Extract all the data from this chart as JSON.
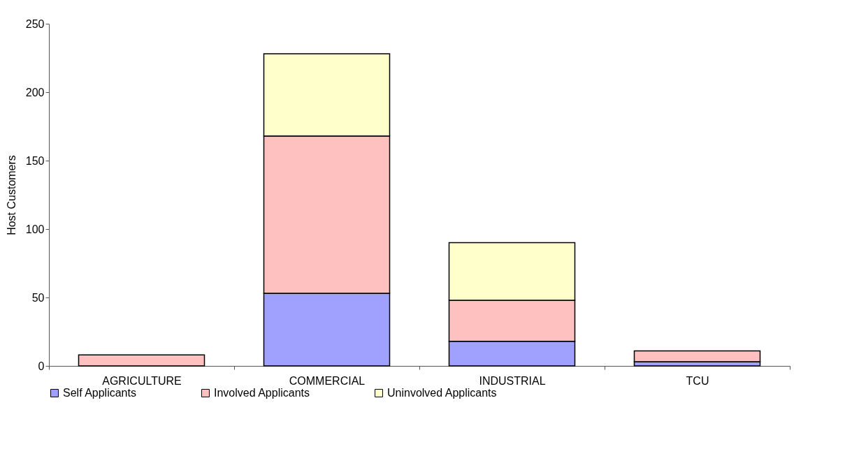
{
  "chart_data": {
    "type": "bar",
    "ylabel": "Host Customers",
    "stacked": true,
    "categories": [
      "AGRICULTURE",
      "COMMERCIAL",
      "INDUSTRIAL",
      "TCU"
    ],
    "series": [
      {
        "name": "Self Applicants",
        "color": "#a0a0ff",
        "values": [
          0,
          53,
          18,
          3
        ]
      },
      {
        "name": "Involved Applicants",
        "color": "#ffc0c0",
        "values": [
          8,
          115,
          30,
          8
        ]
      },
      {
        "name": "Uninvolved Applicants",
        "color": "#ffffcc",
        "values": [
          0,
          60,
          42,
          0
        ]
      }
    ],
    "ylim": [
      0,
      250
    ],
    "yticks": [
      0,
      50,
      100,
      150,
      200,
      250
    ],
    "grid": false,
    "legend": "bottom"
  }
}
